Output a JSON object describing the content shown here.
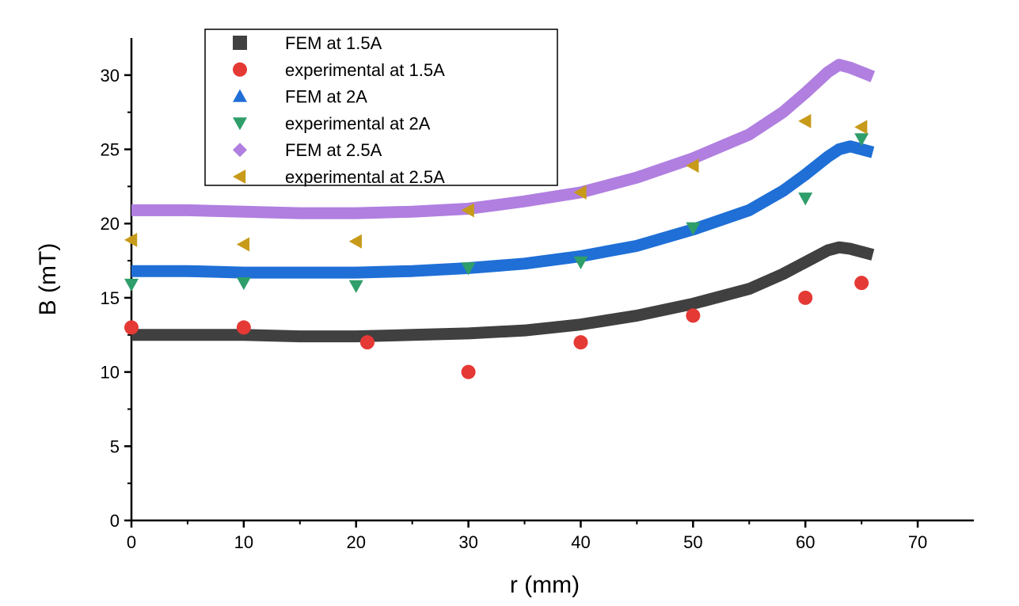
{
  "chart_data": {
    "type": "scatter",
    "title": "",
    "xlabel": "r (mm)",
    "ylabel": "B (mT)",
    "xlim": [
      0,
      75
    ],
    "ylim": [
      0,
      32.5
    ],
    "xticks": [
      0,
      10,
      20,
      30,
      40,
      50,
      60,
      70
    ],
    "yticks": [
      0,
      5,
      10,
      15,
      20,
      25,
      30
    ],
    "grid": false,
    "legend_position": "top-left",
    "series": [
      {
        "name": "FEM at 1.5A",
        "kind": "line",
        "marker": "square",
        "color": "#404040",
        "x": [
          0,
          5,
          10,
          15,
          20,
          25,
          30,
          35,
          40,
          45,
          50,
          55,
          58,
          60,
          62,
          63,
          64,
          65,
          66
        ],
        "y": [
          12.5,
          12.5,
          12.5,
          12.4,
          12.4,
          12.5,
          12.6,
          12.8,
          13.2,
          13.8,
          14.6,
          15.6,
          16.6,
          17.4,
          18.2,
          18.4,
          18.3,
          18.1,
          17.9
        ]
      },
      {
        "name": "experimental at 1.5A",
        "kind": "scatter",
        "marker": "circle",
        "color": "#e53935",
        "x": [
          0,
          10,
          21,
          30,
          40,
          50,
          60,
          65
        ],
        "y": [
          13.0,
          13.0,
          12.0,
          10.0,
          12.0,
          13.8,
          15.0,
          16.0
        ]
      },
      {
        "name": "FEM at 2A",
        "kind": "line",
        "marker": "triangle-up",
        "color": "#1f6fd6",
        "x": [
          0,
          5,
          10,
          15,
          20,
          25,
          30,
          35,
          40,
          45,
          50,
          55,
          58,
          60,
          62,
          63,
          64,
          65,
          66
        ],
        "y": [
          16.8,
          16.8,
          16.7,
          16.7,
          16.7,
          16.8,
          17.0,
          17.3,
          17.8,
          18.5,
          19.6,
          20.9,
          22.2,
          23.3,
          24.5,
          25.0,
          25.2,
          25.0,
          24.8
        ]
      },
      {
        "name": "experimental at 2A",
        "kind": "scatter",
        "marker": "triangle-down",
        "color": "#2e9e6a",
        "x": [
          0,
          10,
          20,
          30,
          40,
          50,
          60,
          65
        ],
        "y": [
          15.9,
          16.0,
          15.8,
          17.0,
          17.4,
          19.7,
          21.7,
          25.7
        ]
      },
      {
        "name": "FEM at 2.5A",
        "kind": "line",
        "marker": "diamond",
        "color": "#b07fe0",
        "x": [
          0,
          5,
          10,
          15,
          20,
          25,
          30,
          35,
          40,
          45,
          50,
          55,
          58,
          60,
          62,
          63,
          64,
          65,
          66
        ],
        "y": [
          20.9,
          20.9,
          20.8,
          20.7,
          20.7,
          20.8,
          21.0,
          21.5,
          22.1,
          23.1,
          24.4,
          26.0,
          27.5,
          28.8,
          30.2,
          30.7,
          30.5,
          30.2,
          29.9
        ]
      },
      {
        "name": "experimental at 2.5A",
        "kind": "scatter",
        "marker": "triangle-left",
        "color": "#c79a1a",
        "x": [
          0,
          10,
          20,
          30,
          40,
          50,
          60,
          65
        ],
        "y": [
          18.9,
          18.6,
          18.8,
          20.9,
          22.1,
          23.9,
          26.9,
          26.5
        ]
      }
    ]
  }
}
